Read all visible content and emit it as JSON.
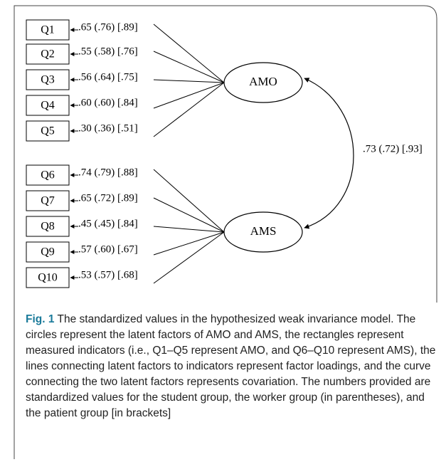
{
  "indicators": [
    "Q1",
    "Q2",
    "Q3",
    "Q4",
    "Q5",
    "Q6",
    "Q7",
    "Q8",
    "Q9",
    "Q10"
  ],
  "loadings": [
    ".65 (.76) [.89]",
    ".55 (.58) [.76]",
    ".56 (.64) [.75]",
    ".60 (.60) [.84]",
    ".30 (.36) [.51]",
    ".74 (.79) [.88]",
    ".65 (.72) [.89]",
    ".45 (.45) [.84]",
    ".57 (.60) [.67]",
    ".53 (.57) [.68]"
  ],
  "factors": [
    "AMO",
    "AMS"
  ],
  "covariance": ".73 (.72) [.93]",
  "caption": {
    "label": "Fig. 1",
    "text": "The standardized values in the hypothesized weak invariance model. The circles represent the latent factors of AMO and AMS, the rectangles represent measured indicators (i.e., Q1–Q5 represent AMO, and Q6–Q10 represent AMS), the lines connecting latent factors to indicators represent factor loadings, and the curve connecting the two latent factors represents covariation. The numbers provided are standardized values for the student group, the worker group (in parentheses), and the patient group [in brackets]"
  }
}
